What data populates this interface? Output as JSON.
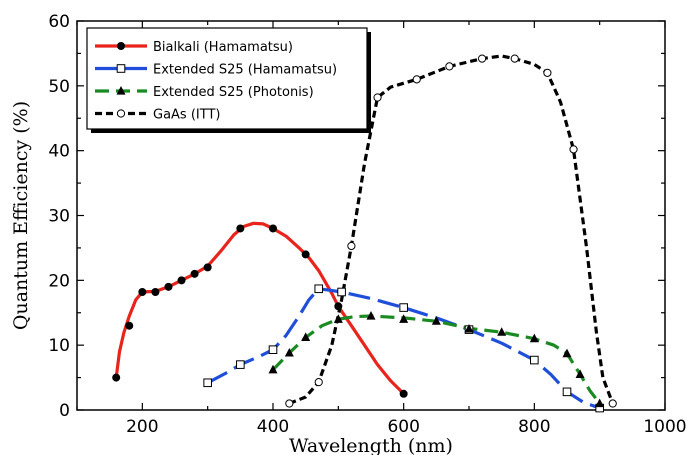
{
  "chart_data": {
    "type": "line",
    "xlabel": "Wavelength (nm)",
    "ylabel": "Quantum Efficiency (%)",
    "xlim": [
      100,
      1000
    ],
    "ylim": [
      0,
      60
    ],
    "x_ticks": [
      200,
      400,
      600,
      800,
      1000
    ],
    "y_ticks": [
      0,
      10,
      20,
      30,
      40,
      50,
      60
    ],
    "legend_position": "top-left",
    "series": [
      {
        "name": "Bialkali (Hamamatsu)",
        "color": "#e8241c",
        "dash": "solid",
        "marker": "filled-circle",
        "points": [
          [
            160,
            5
          ],
          [
            180,
            13
          ],
          [
            200,
            18.2
          ],
          [
            220,
            18.2
          ],
          [
            240,
            19
          ],
          [
            260,
            20
          ],
          [
            280,
            21
          ],
          [
            300,
            22
          ],
          [
            350,
            28
          ],
          [
            400,
            28
          ],
          [
            450,
            24
          ],
          [
            500,
            16
          ],
          [
            600,
            2.5
          ]
        ],
        "curve": [
          [
            160,
            5
          ],
          [
            165,
            9
          ],
          [
            172,
            12
          ],
          [
            180,
            14.5
          ],
          [
            190,
            17
          ],
          [
            200,
            18.2
          ],
          [
            220,
            18.3
          ],
          [
            240,
            19
          ],
          [
            260,
            20
          ],
          [
            280,
            21
          ],
          [
            300,
            22.2
          ],
          [
            320,
            24.5
          ],
          [
            340,
            27
          ],
          [
            355,
            28.3
          ],
          [
            370,
            28.8
          ],
          [
            385,
            28.7
          ],
          [
            400,
            28
          ],
          [
            420,
            26.8
          ],
          [
            440,
            25
          ],
          [
            455,
            23.5
          ],
          [
            470,
            21.5
          ],
          [
            490,
            18
          ],
          [
            500,
            16
          ],
          [
            520,
            13
          ],
          [
            540,
            10
          ],
          [
            560,
            7
          ],
          [
            580,
            4.5
          ],
          [
            600,
            2.5
          ]
        ]
      },
      {
        "name": "Extended S25 (Hamamatsu)",
        "color": "#1f4fd8",
        "dash": "long-dash",
        "marker": "open-square",
        "points": [
          [
            300,
            4.2
          ],
          [
            350,
            7
          ],
          [
            400,
            9.3
          ],
          [
            470,
            18.7
          ],
          [
            505,
            18.2
          ],
          [
            600,
            15.8
          ],
          [
            700,
            12.4
          ],
          [
            800,
            7.7
          ],
          [
            850,
            2.8
          ],
          [
            900,
            0.3
          ]
        ],
        "curve": [
          [
            300,
            4.2
          ],
          [
            330,
            5.8
          ],
          [
            350,
            7
          ],
          [
            380,
            8.3
          ],
          [
            400,
            9.3
          ],
          [
            420,
            11.5
          ],
          [
            440,
            14.5
          ],
          [
            455,
            17
          ],
          [
            470,
            18.7
          ],
          [
            485,
            18.5
          ],
          [
            505,
            18.2
          ],
          [
            550,
            17.2
          ],
          [
            600,
            15.8
          ],
          [
            650,
            14.2
          ],
          [
            700,
            12.4
          ],
          [
            750,
            10.3
          ],
          [
            800,
            7.7
          ],
          [
            825,
            5.5
          ],
          [
            850,
            2.8
          ],
          [
            875,
            1.2
          ],
          [
            900,
            0.3
          ]
        ]
      },
      {
        "name": "Extended S25 (Photonis)",
        "color": "#1a8a22",
        "dash": "dash",
        "marker": "filled-triangle",
        "points": [
          [
            400,
            6.2
          ],
          [
            425,
            8.8
          ],
          [
            450,
            11.2
          ],
          [
            500,
            14
          ],
          [
            550,
            14.5
          ],
          [
            600,
            14
          ],
          [
            650,
            13.7
          ],
          [
            700,
            12.5
          ],
          [
            750,
            12
          ],
          [
            800,
            11
          ],
          [
            850,
            8.7
          ],
          [
            870,
            5.5
          ],
          [
            900,
            1
          ]
        ],
        "curve": [
          [
            400,
            6.2
          ],
          [
            425,
            8.8
          ],
          [
            450,
            11.2
          ],
          [
            475,
            13
          ],
          [
            500,
            14
          ],
          [
            525,
            14.4
          ],
          [
            550,
            14.5
          ],
          [
            600,
            14.2
          ],
          [
            650,
            13.7
          ],
          [
            700,
            12.6
          ],
          [
            750,
            12
          ],
          [
            800,
            11
          ],
          [
            830,
            10
          ],
          [
            850,
            8.7
          ],
          [
            870,
            5.5
          ],
          [
            885,
            3
          ],
          [
            900,
            1
          ]
        ]
      },
      {
        "name": "GaAs (ITT)",
        "color": "#000000",
        "dash": "short-dash",
        "marker": "open-circle",
        "points": [
          [
            425,
            1
          ],
          [
            470,
            4.3
          ],
          [
            520,
            25.3
          ],
          [
            560,
            48.2
          ],
          [
            620,
            51
          ],
          [
            670,
            53
          ],
          [
            720,
            54.2
          ],
          [
            770,
            54.2
          ],
          [
            820,
            52
          ],
          [
            860,
            40.2
          ],
          [
            920,
            1
          ]
        ],
        "curve": [
          [
            425,
            1
          ],
          [
            450,
            2
          ],
          [
            470,
            4.3
          ],
          [
            490,
            10
          ],
          [
            505,
            17
          ],
          [
            520,
            25.3
          ],
          [
            540,
            38
          ],
          [
            560,
            48.2
          ],
          [
            580,
            49.8
          ],
          [
            620,
            51
          ],
          [
            670,
            53
          ],
          [
            720,
            54.2
          ],
          [
            750,
            54.6
          ],
          [
            770,
            54.2
          ],
          [
            800,
            53.3
          ],
          [
            820,
            52
          ],
          [
            840,
            47.5
          ],
          [
            860,
            40.2
          ],
          [
            880,
            25
          ],
          [
            895,
            12
          ],
          [
            905,
            5
          ],
          [
            920,
            1
          ]
        ]
      }
    ]
  }
}
